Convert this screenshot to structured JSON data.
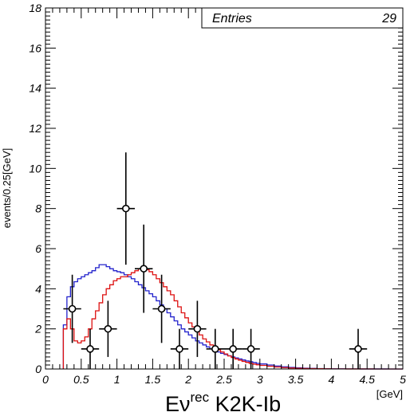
{
  "chart_data": {
    "type": "histogram",
    "xlim": [
      0,
      5
    ],
    "ylim": [
      0,
      18
    ],
    "bin_width": 0.05,
    "x_ticks": [
      0,
      0.5,
      1,
      1.5,
      2,
      2.5,
      3,
      3.5,
      4,
      4.5,
      5
    ],
    "x_tick_labels": [
      "0",
      "0.5",
      "1",
      "1.5",
      "2",
      "2.5",
      "3",
      "3.5",
      "4",
      "4.5",
      "5"
    ],
    "y_ticks": [
      0,
      2,
      4,
      6,
      8,
      10,
      12,
      14,
      16,
      18
    ],
    "y_tick_labels": [
      "0",
      "2",
      "4",
      "6",
      "8",
      "10",
      "12",
      "14",
      "16",
      "18"
    ],
    "ylabel": "events/0.25[GeV]",
    "xlabel_main": "Eν",
    "xlabel_sup": "rec",
    "xlabel_suffix": " K2K-Ib",
    "xunit": "[GeV]",
    "stats": {
      "label": "Entries",
      "value": "29"
    },
    "colors": {
      "blue": "#2222cc",
      "red": "#dd1111",
      "data": "#000000"
    },
    "series": [
      {
        "color": "blue",
        "x": [
          0.25,
          0.3,
          0.35,
          0.4,
          0.45,
          0.5,
          0.55,
          0.6,
          0.65,
          0.7,
          0.75,
          0.8,
          0.85,
          0.9,
          0.95,
          1.0,
          1.05,
          1.1,
          1.15,
          1.2,
          1.25,
          1.3,
          1.35,
          1.4,
          1.45,
          1.5,
          1.55,
          1.6,
          1.65,
          1.7,
          1.75,
          1.8,
          1.85,
          1.9,
          1.95,
          2.0,
          2.05,
          2.1,
          2.15,
          2.2,
          2.25,
          2.3,
          2.35,
          2.4,
          2.45,
          2.5,
          2.55,
          2.6,
          2.65,
          2.7,
          2.75,
          2.8,
          2.85,
          2.9,
          2.95,
          3.0,
          3.1,
          3.2,
          3.3,
          3.4,
          3.5,
          3.6,
          3.7,
          3.8,
          3.9,
          4.0,
          4.2,
          4.4,
          4.6,
          4.8
        ],
        "values": [
          2.2,
          3.6,
          4.1,
          4.35,
          4.5,
          4.6,
          4.7,
          4.8,
          4.9,
          5.05,
          5.2,
          5.2,
          5.1,
          5.0,
          4.9,
          4.85,
          4.8,
          4.7,
          4.6,
          4.5,
          4.35,
          4.2,
          4.05,
          3.9,
          3.75,
          3.6,
          3.4,
          3.2,
          3.0,
          2.8,
          2.6,
          2.4,
          2.2,
          2.0,
          1.85,
          1.7,
          1.55,
          1.4,
          1.3,
          1.2,
          1.1,
          1.0,
          0.92,
          0.85,
          0.78,
          0.72,
          0.66,
          0.6,
          0.55,
          0.5,
          0.45,
          0.4,
          0.36,
          0.32,
          0.28,
          0.25,
          0.2,
          0.15,
          0.11,
          0.08,
          0.06,
          0.04,
          0.03,
          0.02,
          0.015,
          0.01,
          0.005,
          0.003,
          0.002,
          0.001
        ]
      },
      {
        "color": "red",
        "x": [
          0.25,
          0.3,
          0.35,
          0.4,
          0.45,
          0.5,
          0.55,
          0.6,
          0.65,
          0.7,
          0.75,
          0.8,
          0.85,
          0.9,
          0.95,
          1.0,
          1.05,
          1.1,
          1.15,
          1.2,
          1.25,
          1.3,
          1.35,
          1.4,
          1.45,
          1.5,
          1.55,
          1.6,
          1.65,
          1.7,
          1.75,
          1.8,
          1.85,
          1.9,
          1.95,
          2.0,
          2.05,
          2.1,
          2.15,
          2.2,
          2.25,
          2.3,
          2.35,
          2.4,
          2.45,
          2.5,
          2.55,
          2.6,
          2.65,
          2.7,
          2.75,
          2.8,
          2.85,
          2.9,
          2.95,
          3.0,
          3.1,
          3.2,
          3.3,
          3.4,
          3.5,
          3.6,
          3.7,
          3.8,
          3.9,
          4.0,
          4.2,
          4.4,
          4.6,
          4.8
        ],
        "values": [
          2.0,
          2.5,
          2.0,
          1.4,
          1.3,
          1.4,
          1.6,
          2.0,
          2.5,
          2.9,
          3.3,
          3.7,
          4.0,
          4.2,
          4.4,
          4.5,
          4.6,
          4.6,
          4.7,
          4.8,
          4.9,
          5.0,
          5.0,
          4.95,
          4.85,
          4.7,
          4.5,
          4.3,
          4.1,
          3.9,
          3.7,
          3.4,
          3.1,
          2.8,
          2.55,
          2.3,
          2.1,
          1.9,
          1.7,
          1.5,
          1.35,
          1.2,
          1.05,
          0.95,
          0.85,
          0.75,
          0.65,
          0.57,
          0.5,
          0.44,
          0.38,
          0.33,
          0.28,
          0.24,
          0.21,
          0.18,
          0.14,
          0.1,
          0.07,
          0.05,
          0.035,
          0.025,
          0.018,
          0.012,
          0.008,
          0.005,
          0.003,
          0.002,
          0.001,
          0.0005
        ]
      }
    ],
    "points": [
      {
        "x": 0.375,
        "y": 3,
        "xerr": 0.125,
        "yerr_low": 1.7,
        "yerr_high": 1.7
      },
      {
        "x": 0.625,
        "y": 1,
        "xerr": 0.125,
        "yerr_low": 1.0,
        "yerr_high": 1.0
      },
      {
        "x": 0.875,
        "y": 2,
        "xerr": 0.125,
        "yerr_low": 1.4,
        "yerr_high": 1.4
      },
      {
        "x": 1.125,
        "y": 8,
        "xerr": 0.125,
        "yerr_low": 2.8,
        "yerr_high": 2.8
      },
      {
        "x": 1.375,
        "y": 5,
        "xerr": 0.125,
        "yerr_low": 2.2,
        "yerr_high": 2.2
      },
      {
        "x": 1.625,
        "y": 3,
        "xerr": 0.125,
        "yerr_low": 1.7,
        "yerr_high": 1.7
      },
      {
        "x": 1.875,
        "y": 1,
        "xerr": 0.125,
        "yerr_low": 1.0,
        "yerr_high": 1.0
      },
      {
        "x": 2.125,
        "y": 2,
        "xerr": 0.125,
        "yerr_low": 1.4,
        "yerr_high": 1.4
      },
      {
        "x": 2.375,
        "y": 1,
        "xerr": 0.125,
        "yerr_low": 1.0,
        "yerr_high": 1.0
      },
      {
        "x": 2.625,
        "y": 1,
        "xerr": 0.125,
        "yerr_low": 1.0,
        "yerr_high": 1.0
      },
      {
        "x": 2.875,
        "y": 1,
        "xerr": 0.125,
        "yerr_low": 1.0,
        "yerr_high": 1.0
      },
      {
        "x": 4.375,
        "y": 1,
        "xerr": 0.125,
        "yerr_low": 1.0,
        "yerr_high": 1.0
      }
    ]
  }
}
